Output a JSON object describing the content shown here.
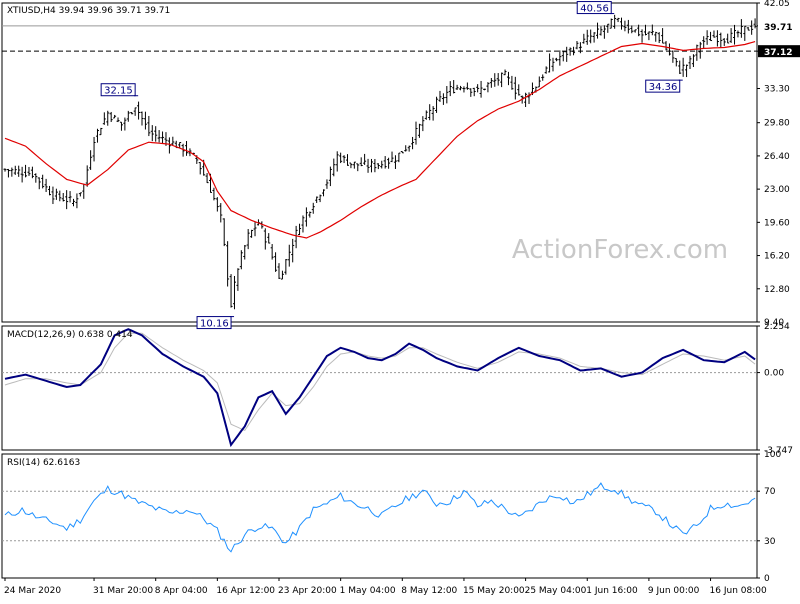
{
  "chart_data": [
    {
      "type": "ohlc",
      "panel": "price",
      "header": {
        "symbol": "XTIUSD,H4",
        "ohlc": [
          "39.94",
          "39.96",
          "39.71",
          "39.71"
        ]
      },
      "watermark": "ActionForex.com",
      "ylim": [
        9.4,
        42.05
      ],
      "y_ticks": [
        "42.05",
        "39.71",
        "37.12",
        "33.30",
        "29.80",
        "26.40",
        "23.00",
        "19.60",
        "16.20",
        "12.80",
        "9.40"
      ],
      "last_price_label": "39.71",
      "horizontal_levels": [
        {
          "value": 42.05,
          "style": "dotted",
          "label": "42.05"
        },
        {
          "value": 39.71,
          "style": "solid",
          "label": "39.71"
        },
        {
          "value": 37.12,
          "style": "dashed",
          "label": "37.12"
        }
      ],
      "annotations": [
        {
          "text": "32.15",
          "bar": 38,
          "value": 32.15
        },
        {
          "text": "10.16",
          "bar": 66,
          "value": 10.16
        },
        {
          "text": "40.56",
          "bar": 177,
          "value": 40.56
        },
        {
          "text": "34.36",
          "bar": 197,
          "value": 34.36
        }
      ],
      "price_path": [
        [
          0,
          25.0
        ],
        [
          8,
          24.6
        ],
        [
          14,
          22.4
        ],
        [
          20,
          21.7
        ],
        [
          23,
          23.4
        ],
        [
          26,
          28.2
        ],
        [
          30,
          30.8
        ],
        [
          34,
          29.6
        ],
        [
          38,
          31.6
        ],
        [
          42,
          28.8
        ],
        [
          47,
          28.0
        ],
        [
          52,
          27.2
        ],
        [
          56,
          26.0
        ],
        [
          60,
          23.0
        ],
        [
          63,
          20.0
        ],
        [
          66,
          11.2
        ],
        [
          68,
          15.0
        ],
        [
          71,
          18.2
        ],
        [
          74,
          19.6
        ],
        [
          77,
          17.2
        ],
        [
          80,
          13.8
        ],
        [
          83,
          16.6
        ],
        [
          86,
          19.4
        ],
        [
          90,
          21.6
        ],
        [
          94,
          23.8
        ],
        [
          97,
          26.4
        ],
        [
          101,
          25.6
        ],
        [
          106,
          25.4
        ],
        [
          110,
          25.6
        ],
        [
          114,
          26.2
        ],
        [
          118,
          27.6
        ],
        [
          122,
          30.0
        ],
        [
          126,
          31.8
        ],
        [
          130,
          33.2
        ],
        [
          134,
          33.6
        ],
        [
          138,
          33.0
        ],
        [
          142,
          33.9
        ],
        [
          146,
          34.6
        ],
        [
          151,
          32.2
        ],
        [
          155,
          33.6
        ],
        [
          159,
          35.8
        ],
        [
          163,
          36.8
        ],
        [
          167,
          37.6
        ],
        [
          171,
          38.6
        ],
        [
          175,
          39.4
        ],
        [
          178,
          40.2
        ],
        [
          182,
          39.6
        ],
        [
          186,
          38.8
        ],
        [
          190,
          39.0
        ],
        [
          193,
          37.4
        ],
        [
          197,
          35.2
        ],
        [
          200,
          36.0
        ],
        [
          203,
          38.0
        ],
        [
          207,
          38.6
        ],
        [
          211,
          38.4
        ],
        [
          215,
          39.2
        ],
        [
          219,
          39.8
        ]
      ],
      "ma_path": [
        [
          0,
          28.2
        ],
        [
          6,
          27.4
        ],
        [
          12,
          25.6
        ],
        [
          18,
          24.0
        ],
        [
          24,
          23.4
        ],
        [
          30,
          25.0
        ],
        [
          36,
          27.0
        ],
        [
          42,
          27.8
        ],
        [
          48,
          27.6
        ],
        [
          54,
          26.8
        ],
        [
          58,
          25.8
        ],
        [
          62,
          22.8
        ],
        [
          66,
          20.8
        ],
        [
          72,
          19.8
        ],
        [
          78,
          19.0
        ],
        [
          84,
          18.3
        ],
        [
          88,
          18.0
        ],
        [
          92,
          18.6
        ],
        [
          98,
          19.8
        ],
        [
          104,
          21.2
        ],
        [
          110,
          22.4
        ],
        [
          116,
          23.4
        ],
        [
          120,
          24.0
        ],
        [
          126,
          26.2
        ],
        [
          132,
          28.4
        ],
        [
          138,
          30.0
        ],
        [
          144,
          31.2
        ],
        [
          150,
          32.0
        ],
        [
          156,
          33.2
        ],
        [
          162,
          34.6
        ],
        [
          168,
          35.6
        ],
        [
          174,
          36.6
        ],
        [
          180,
          37.6
        ],
        [
          186,
          37.9
        ],
        [
          192,
          37.6
        ],
        [
          198,
          37.2
        ],
        [
          204,
          37.4
        ],
        [
          210,
          37.5
        ],
        [
          216,
          37.8
        ],
        [
          219,
          38.1
        ]
      ]
    },
    {
      "type": "line",
      "panel": "macd",
      "header": {
        "name": "MACD(12,26,9)",
        "values": [
          "0.638",
          "0.414"
        ]
      },
      "ylim": [
        -3.747,
        2.254
      ],
      "y_ticks": [
        "2.254",
        "0.00",
        "-3.747"
      ],
      "zero_line": 0,
      "series": [
        {
          "role": "macd",
          "color": "#000080",
          "points": [
            [
              0,
              -0.3
            ],
            [
              6,
              -0.1
            ],
            [
              12,
              -0.4
            ],
            [
              18,
              -0.7
            ],
            [
              22,
              -0.6
            ],
            [
              28,
              0.4
            ],
            [
              32,
              1.8
            ],
            [
              36,
              2.1
            ],
            [
              40,
              1.8
            ],
            [
              46,
              0.9
            ],
            [
              52,
              0.3
            ],
            [
              58,
              -0.2
            ],
            [
              62,
              -1.0
            ],
            [
              66,
              -3.5
            ],
            [
              70,
              -2.6
            ],
            [
              74,
              -1.2
            ],
            [
              78,
              -0.9
            ],
            [
              82,
              -2.0
            ],
            [
              86,
              -1.2
            ],
            [
              90,
              -0.2
            ],
            [
              94,
              0.8
            ],
            [
              98,
              1.2
            ],
            [
              102,
              1.0
            ],
            [
              106,
              0.7
            ],
            [
              110,
              0.6
            ],
            [
              114,
              0.9
            ],
            [
              118,
              1.4
            ],
            [
              122,
              1.1
            ],
            [
              126,
              0.7
            ],
            [
              132,
              0.3
            ],
            [
              138,
              0.1
            ],
            [
              144,
              0.7
            ],
            [
              150,
              1.2
            ],
            [
              156,
              0.8
            ],
            [
              162,
              0.6
            ],
            [
              168,
              0.1
            ],
            [
              174,
              0.2
            ],
            [
              180,
              -0.2
            ],
            [
              186,
              0.0
            ],
            [
              192,
              0.7
            ],
            [
              198,
              1.1
            ],
            [
              204,
              0.6
            ],
            [
              210,
              0.5
            ],
            [
              216,
              1.0
            ],
            [
              219,
              0.64
            ]
          ]
        },
        {
          "role": "signal",
          "color": "#bbbbbb",
          "points": [
            [
              0,
              -0.6
            ],
            [
              6,
              -0.3
            ],
            [
              12,
              -0.3
            ],
            [
              18,
              -0.5
            ],
            [
              22,
              -0.6
            ],
            [
              28,
              0.0
            ],
            [
              32,
              1.2
            ],
            [
              36,
              1.9
            ],
            [
              40,
              1.9
            ],
            [
              46,
              1.2
            ],
            [
              52,
              0.6
            ],
            [
              58,
              0.1
            ],
            [
              62,
              -0.5
            ],
            [
              66,
              -2.5
            ],
            [
              70,
              -2.8
            ],
            [
              74,
              -1.8
            ],
            [
              78,
              -1.0
            ],
            [
              82,
              -1.6
            ],
            [
              86,
              -1.5
            ],
            [
              90,
              -0.7
            ],
            [
              94,
              0.3
            ],
            [
              98,
              0.9
            ],
            [
              102,
              1.0
            ],
            [
              106,
              0.8
            ],
            [
              110,
              0.7
            ],
            [
              114,
              0.8
            ],
            [
              118,
              1.2
            ],
            [
              122,
              1.2
            ],
            [
              126,
              0.9
            ],
            [
              132,
              0.5
            ],
            [
              138,
              0.2
            ],
            [
              144,
              0.5
            ],
            [
              150,
              1.0
            ],
            [
              156,
              0.9
            ],
            [
              162,
              0.7
            ],
            [
              168,
              0.3
            ],
            [
              174,
              0.2
            ],
            [
              180,
              0.0
            ],
            [
              186,
              -0.1
            ],
            [
              192,
              0.4
            ],
            [
              198,
              0.9
            ],
            [
              204,
              0.8
            ],
            [
              210,
              0.6
            ],
            [
              216,
              0.8
            ],
            [
              219,
              0.41
            ]
          ]
        }
      ]
    },
    {
      "type": "line",
      "panel": "rsi",
      "header": {
        "name": "RSI(14)",
        "value": "62.6163"
      },
      "ylim": [
        0,
        100
      ],
      "y_ticks": [
        "100",
        "70",
        "30",
        "0"
      ],
      "levels": [
        70,
        30
      ],
      "series": [
        {
          "role": "rsi",
          "color": "#1e90ff",
          "points": [
            [
              0,
              50
            ],
            [
              5,
              55
            ],
            [
              10,
              48
            ],
            [
              14,
              45
            ],
            [
              18,
              40
            ],
            [
              22,
              47
            ],
            [
              26,
              62
            ],
            [
              30,
              72
            ],
            [
              34,
              68
            ],
            [
              38,
              62
            ],
            [
              42,
              58
            ],
            [
              48,
              52
            ],
            [
              54,
              55
            ],
            [
              58,
              48
            ],
            [
              62,
              38
            ],
            [
              66,
              22
            ],
            [
              70,
              35
            ],
            [
              74,
              42
            ],
            [
              78,
              40
            ],
            [
              82,
              28
            ],
            [
              86,
              40
            ],
            [
              90,
              55
            ],
            [
              94,
              60
            ],
            [
              98,
              66
            ],
            [
              102,
              60
            ],
            [
              106,
              56
            ],
            [
              110,
              50
            ],
            [
              114,
              58
            ],
            [
              118,
              65
            ],
            [
              122,
              70
            ],
            [
              126,
              60
            ],
            [
              130,
              62
            ],
            [
              134,
              70
            ],
            [
              138,
              58
            ],
            [
              142,
              62
            ],
            [
              146,
              56
            ],
            [
              150,
              48
            ],
            [
              154,
              56
            ],
            [
              158,
              64
            ],
            [
              162,
              67
            ],
            [
              166,
              60
            ],
            [
              170,
              67
            ],
            [
              174,
              74
            ],
            [
              178,
              72
            ],
            [
              182,
              64
            ],
            [
              186,
              58
            ],
            [
              190,
              54
            ],
            [
              194,
              44
            ],
            [
              198,
              35
            ],
            [
              202,
              42
            ],
            [
              206,
              56
            ],
            [
              210,
              60
            ],
            [
              214,
              58
            ],
            [
              219,
              63
            ]
          ]
        }
      ]
    }
  ],
  "x_axis": {
    "labels": [
      "24 Mar 2020",
      "31 Mar 20:00",
      "8 Apr 04:00",
      "16 Apr 12:00",
      "23 Apr 20:00",
      "1 May 04:00",
      "8 May 12:00",
      "15 May 20:00",
      "25 May 04:00",
      "1 Jun 16:00",
      "9 Jun 00:00",
      "16 Jun 08:00"
    ],
    "label_bars": [
      0,
      26,
      44,
      62,
      80,
      98,
      116,
      134,
      152,
      170,
      188,
      206
    ]
  }
}
